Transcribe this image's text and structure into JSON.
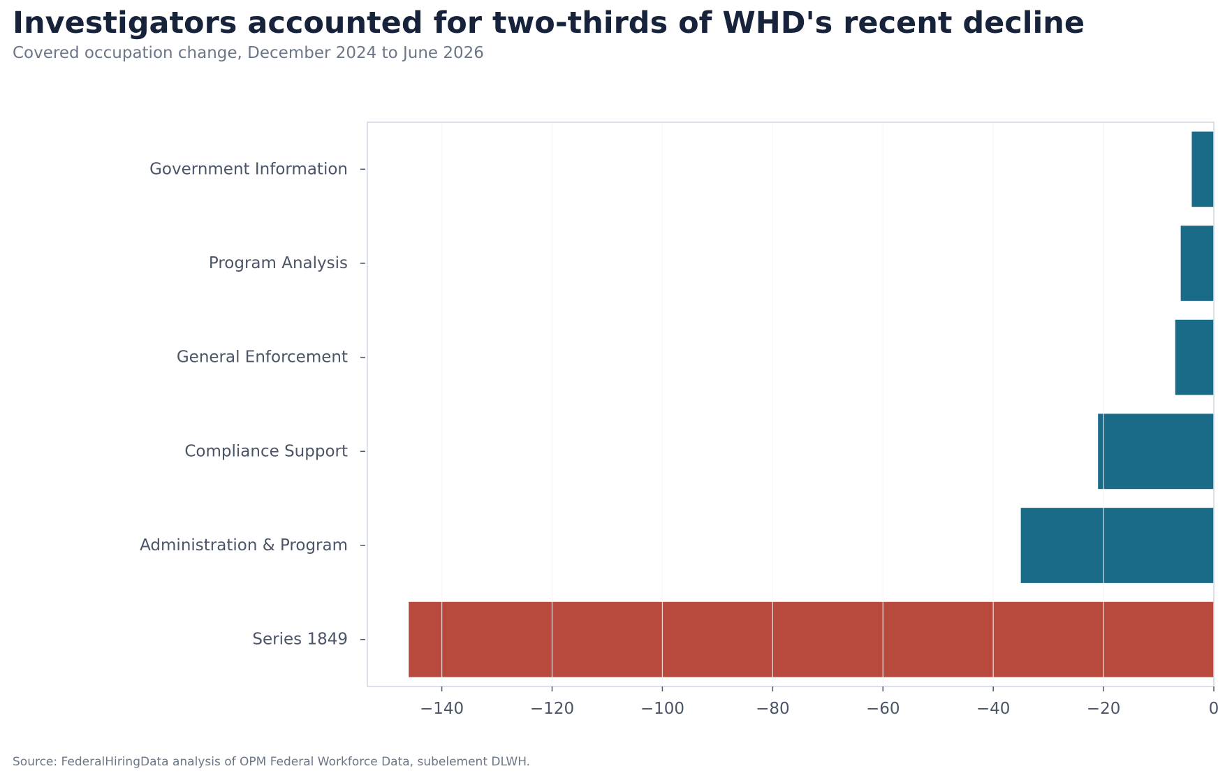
{
  "header": {
    "title": "Investigators accounted for two-thirds of WHD's recent decline",
    "subtitle": "Covered occupation change, December 2024 to June 2026"
  },
  "footer": {
    "source": "Source: FederalHiringData analysis of OPM Federal Workforce Data, subelement DLWH."
  },
  "chart_data": {
    "type": "bar",
    "orientation": "horizontal",
    "title": "Investigators accounted for two-thirds of WHD's recent decline",
    "subtitle": "Covered occupation change, December 2024 to June 2026",
    "xlabel": "",
    "ylabel": "",
    "categories": [
      "Government Information",
      "Program Analysis",
      "General Enforcement",
      "Compliance Support",
      "Administration & Program",
      "Series 1849"
    ],
    "values": [
      -4,
      -6,
      -7,
      -21,
      -35,
      -146
    ],
    "xlim": [
      -153.5,
      0
    ],
    "xticks": [
      -140,
      -120,
      -100,
      -80,
      -60,
      -40,
      -20,
      0
    ],
    "xtick_labels": [
      "−140",
      "−120",
      "−100",
      "−80",
      "−60",
      "−40",
      "−20",
      "0"
    ],
    "grid": "vertical",
    "legend": "none",
    "colors": {
      "default_bar": "#1a6b87",
      "highlight_bar": "#b8493d",
      "gridline": "#e5e8ee",
      "axis": "#cfd6e2"
    },
    "highlight_category": "Series 1849"
  }
}
